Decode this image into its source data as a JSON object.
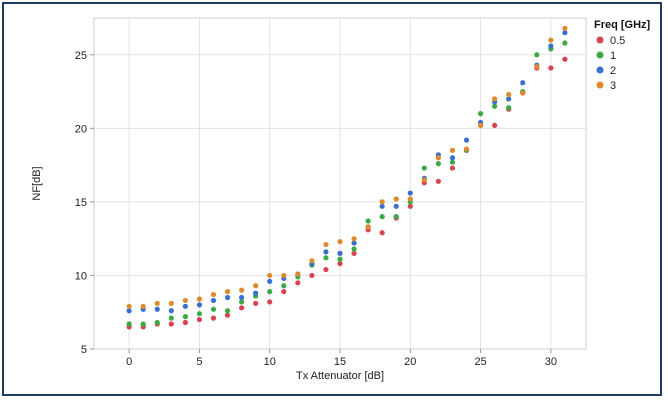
{
  "chart_data": {
    "type": "scatter",
    "title": "",
    "xlabel": "Tx Attenuator [dB]",
    "ylabel": "NF[dB]",
    "xlim": [
      -2.5,
      32.5
    ],
    "ylim": [
      5,
      27.5
    ],
    "xticks": [
      0,
      5,
      10,
      15,
      20,
      25,
      30
    ],
    "yticks": [
      5,
      10,
      15,
      20,
      25
    ],
    "grid": true,
    "legend": {
      "title": "Freq [GHz]",
      "placement": "top-right"
    },
    "series": [
      {
        "name": "0.5",
        "color": "#d9434f",
        "points": [
          [
            0,
            6.5
          ],
          [
            1,
            6.5
          ],
          [
            2,
            6.7
          ],
          [
            3,
            6.7
          ],
          [
            4,
            6.8
          ],
          [
            5,
            7.0
          ],
          [
            6,
            7.1
          ],
          [
            7,
            7.3
          ],
          [
            8,
            7.8
          ],
          [
            9,
            8.1
          ],
          [
            10,
            8.2
          ],
          [
            11,
            8.9
          ],
          [
            12,
            9.5
          ],
          [
            13,
            10.0
          ],
          [
            14,
            10.4
          ],
          [
            15,
            10.8
          ],
          [
            16,
            11.5
          ],
          [
            17,
            13.1
          ],
          [
            18,
            12.9
          ],
          [
            19,
            13.9
          ],
          [
            20,
            14.7
          ],
          [
            21,
            16.3
          ],
          [
            22,
            16.4
          ],
          [
            23,
            17.3
          ],
          [
            24,
            18.5
          ],
          [
            25,
            20.2
          ],
          [
            26,
            20.2
          ],
          [
            27,
            21.3
          ],
          [
            28,
            22.4
          ],
          [
            29,
            24.1
          ],
          [
            30,
            24.1
          ],
          [
            31,
            24.7
          ]
        ]
      },
      {
        "name": "1",
        "color": "#3aaa45",
        "points": [
          [
            0,
            6.7
          ],
          [
            1,
            6.7
          ],
          [
            2,
            6.8
          ],
          [
            3,
            7.1
          ],
          [
            4,
            7.2
          ],
          [
            5,
            7.4
          ],
          [
            6,
            7.7
          ],
          [
            7,
            7.6
          ],
          [
            8,
            8.2
          ],
          [
            9,
            8.6
          ],
          [
            10,
            8.9
          ],
          [
            11,
            9.3
          ],
          [
            12,
            9.9
          ],
          [
            13,
            10.7
          ],
          [
            14,
            11.2
          ],
          [
            15,
            11.1
          ],
          [
            16,
            11.8
          ],
          [
            17,
            13.7
          ],
          [
            18,
            14.0
          ],
          [
            19,
            14.0
          ],
          [
            20,
            15.0
          ],
          [
            21,
            17.3
          ],
          [
            22,
            17.6
          ],
          [
            23,
            17.7
          ],
          [
            24,
            18.5
          ],
          [
            25,
            21.0
          ],
          [
            26,
            21.5
          ],
          [
            27,
            21.4
          ],
          [
            28,
            22.5
          ],
          [
            29,
            25.0
          ],
          [
            30,
            25.4
          ],
          [
            31,
            25.8
          ]
        ]
      },
      {
        "name": "2",
        "color": "#3a6fcf",
        "points": [
          [
            0,
            7.6
          ],
          [
            1,
            7.7
          ],
          [
            2,
            7.7
          ],
          [
            3,
            7.6
          ],
          [
            4,
            7.9
          ],
          [
            5,
            8.0
          ],
          [
            6,
            8.3
          ],
          [
            7,
            8.5
          ],
          [
            8,
            8.5
          ],
          [
            9,
            8.8
          ],
          [
            10,
            9.6
          ],
          [
            11,
            9.8
          ],
          [
            12,
            10.1
          ],
          [
            13,
            10.8
          ],
          [
            14,
            11.6
          ],
          [
            15,
            11.5
          ],
          [
            16,
            12.2
          ],
          [
            17,
            13.3
          ],
          [
            18,
            14.7
          ],
          [
            19,
            14.7
          ],
          [
            20,
            15.6
          ],
          [
            21,
            16.6
          ],
          [
            22,
            18.2
          ],
          [
            23,
            18.0
          ],
          [
            24,
            19.2
          ],
          [
            25,
            20.4
          ],
          [
            26,
            21.8
          ],
          [
            27,
            22.0
          ],
          [
            28,
            23.1
          ],
          [
            29,
            24.3
          ],
          [
            30,
            25.6
          ],
          [
            31,
            26.5
          ]
        ]
      },
      {
        "name": "3",
        "color": "#e08a2e",
        "points": [
          [
            0,
            7.9
          ],
          [
            1,
            7.9
          ],
          [
            2,
            8.1
          ],
          [
            3,
            8.1
          ],
          [
            4,
            8.3
          ],
          [
            5,
            8.4
          ],
          [
            6,
            8.7
          ],
          [
            7,
            8.9
          ],
          [
            8,
            9.0
          ],
          [
            9,
            9.3
          ],
          [
            10,
            10.0
          ],
          [
            11,
            10.0
          ],
          [
            12,
            10.1
          ],
          [
            13,
            11.0
          ],
          [
            14,
            12.1
          ],
          [
            15,
            12.3
          ],
          [
            16,
            12.5
          ],
          [
            17,
            13.3
          ],
          [
            18,
            15.0
          ],
          [
            19,
            15.2
          ],
          [
            20,
            15.2
          ],
          [
            21,
            16.5
          ],
          [
            22,
            18.0
          ],
          [
            23,
            18.5
          ],
          [
            24,
            18.6
          ],
          [
            25,
            20.2
          ],
          [
            26,
            22.0
          ],
          [
            27,
            22.3
          ],
          [
            28,
            22.4
          ],
          [
            29,
            24.2
          ],
          [
            30,
            26.0
          ],
          [
            31,
            26.8
          ]
        ]
      }
    ]
  }
}
